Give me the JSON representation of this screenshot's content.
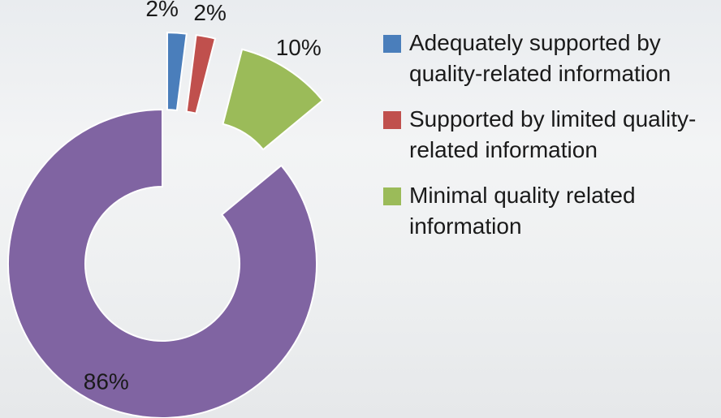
{
  "chart_data": {
    "type": "donut",
    "categories": [
      "Adequately supported by quality-related information",
      "Supported by limited quality-related information",
      "Minimal quality related information",
      null
    ],
    "values": [
      2,
      2,
      10,
      86
    ],
    "value_labels": [
      "2%",
      "2%",
      "10%",
      "86%"
    ],
    "colors": [
      "#4a7ebb",
      "#c0504d",
      "#9bbb59",
      "#8064a2"
    ],
    "legend": "right"
  }
}
